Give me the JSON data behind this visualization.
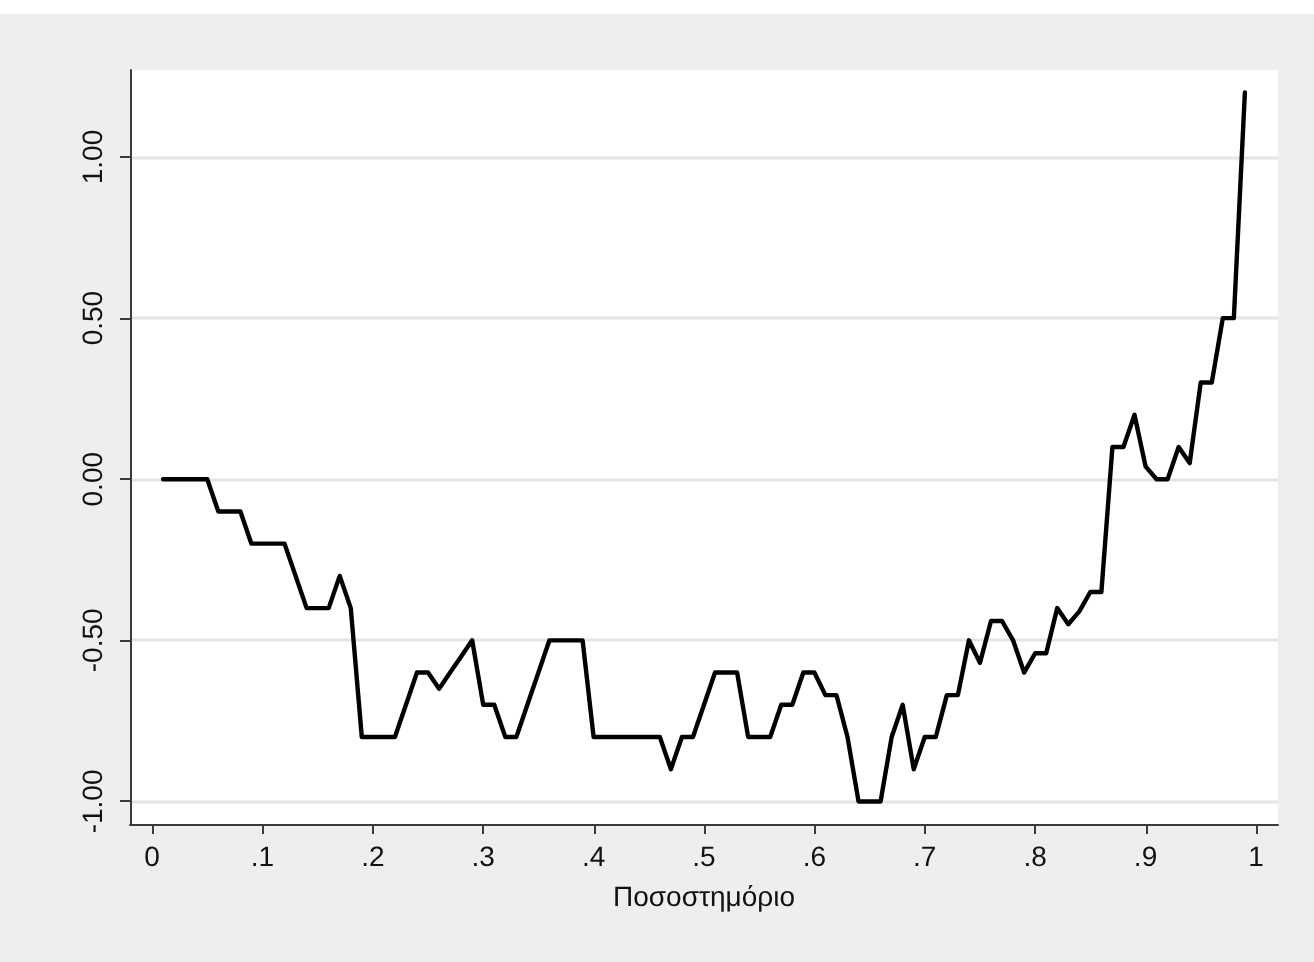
{
  "chart_data": {
    "type": "line",
    "xlabel": "Ποσοστημόριο",
    "color": "#000000",
    "line_style": "solid",
    "grid": "y",
    "x": [
      0.01,
      0.02,
      0.03,
      0.04,
      0.05,
      0.06,
      0.07,
      0.08,
      0.09,
      0.1,
      0.11,
      0.12,
      0.13,
      0.14,
      0.15,
      0.16,
      0.17,
      0.18,
      0.19,
      0.2,
      0.21,
      0.22,
      0.23,
      0.24,
      0.25,
      0.26,
      0.27,
      0.28,
      0.29,
      0.3,
      0.31,
      0.32,
      0.33,
      0.34,
      0.35,
      0.36,
      0.37,
      0.38,
      0.39,
      0.4,
      0.41,
      0.42,
      0.43,
      0.44,
      0.45,
      0.46,
      0.47,
      0.48,
      0.49,
      0.5,
      0.51,
      0.52,
      0.53,
      0.54,
      0.55,
      0.56,
      0.57,
      0.58,
      0.59,
      0.6,
      0.61,
      0.62,
      0.63,
      0.64,
      0.65,
      0.66,
      0.67,
      0.68,
      0.69,
      0.7,
      0.71,
      0.72,
      0.73,
      0.74,
      0.75,
      0.76,
      0.77,
      0.78,
      0.79,
      0.8,
      0.81,
      0.82,
      0.83,
      0.84,
      0.85,
      0.86,
      0.87,
      0.88,
      0.89,
      0.9,
      0.91,
      0.92,
      0.93,
      0.94,
      0.95,
      0.96,
      0.97,
      0.98,
      0.99
    ],
    "values": [
      0,
      0,
      0,
      0,
      0,
      -0.1,
      -0.1,
      -0.1,
      -0.2,
      -0.2,
      -0.2,
      -0.2,
      -0.3,
      -0.4,
      -0.4,
      -0.4,
      -0.3,
      -0.4,
      -0.8,
      -0.8,
      -0.8,
      -0.8,
      -0.7,
      -0.6,
      -0.6,
      -0.65,
      -0.6,
      -0.55,
      -0.5,
      -0.7,
      -0.7,
      -0.8,
      -0.8,
      -0.7,
      -0.6,
      -0.5,
      -0.5,
      -0.5,
      -0.5,
      -0.8,
      -0.8,
      -0.8,
      -0.8,
      -0.8,
      -0.8,
      -0.8,
      -0.9,
      -0.8,
      -0.8,
      -0.7,
      -0.6,
      -0.6,
      -0.6,
      -0.8,
      -0.8,
      -0.8,
      -0.7,
      -0.7,
      -0.6,
      -0.6,
      -0.67,
      -0.67,
      -0.8,
      -1,
      -1,
      -1,
      -0.8,
      -0.7,
      -0.9,
      -0.8,
      -0.8,
      -0.67,
      -0.67,
      -0.5,
      -0.57,
      -0.44,
      -0.44,
      -0.5,
      -0.6,
      -0.54,
      -0.54,
      -0.4,
      -0.45,
      -0.41,
      -0.35,
      -0.35,
      0.1,
      0.1,
      0.2,
      0.04,
      0,
      0,
      0.1,
      0.05,
      0.3,
      0.3,
      0.5,
      0.5,
      1.2
    ],
    "xlim": [
      -0.02,
      1.02
    ],
    "xticks": [
      0,
      {
        "value": 0.1,
        "label": ".1"
      },
      {
        "value": 0.2,
        "label": ".2"
      },
      {
        "value": 0.3,
        "label": ".3"
      },
      {
        "value": 0.4,
        "label": ".4"
      },
      {
        "value": 0.5,
        "label": ".5"
      },
      {
        "value": 0.6,
        "label": ".6"
      },
      {
        "value": 0.7,
        "label": ".7"
      },
      {
        "value": 0.8,
        "label": ".8"
      },
      {
        "value": 0.9,
        "label": ".9"
      },
      1
    ],
    "ylim": [
      -1.07,
      1.27
    ],
    "yticks": [
      {
        "value": -1,
        "label": "-1.00"
      },
      {
        "value": -0.5,
        "label": "-0.50"
      },
      {
        "value": 0,
        "label": "0.00"
      },
      {
        "value": 0.5,
        "label": "0.50"
      },
      {
        "value": 1,
        "label": "1.00"
      }
    ]
  }
}
